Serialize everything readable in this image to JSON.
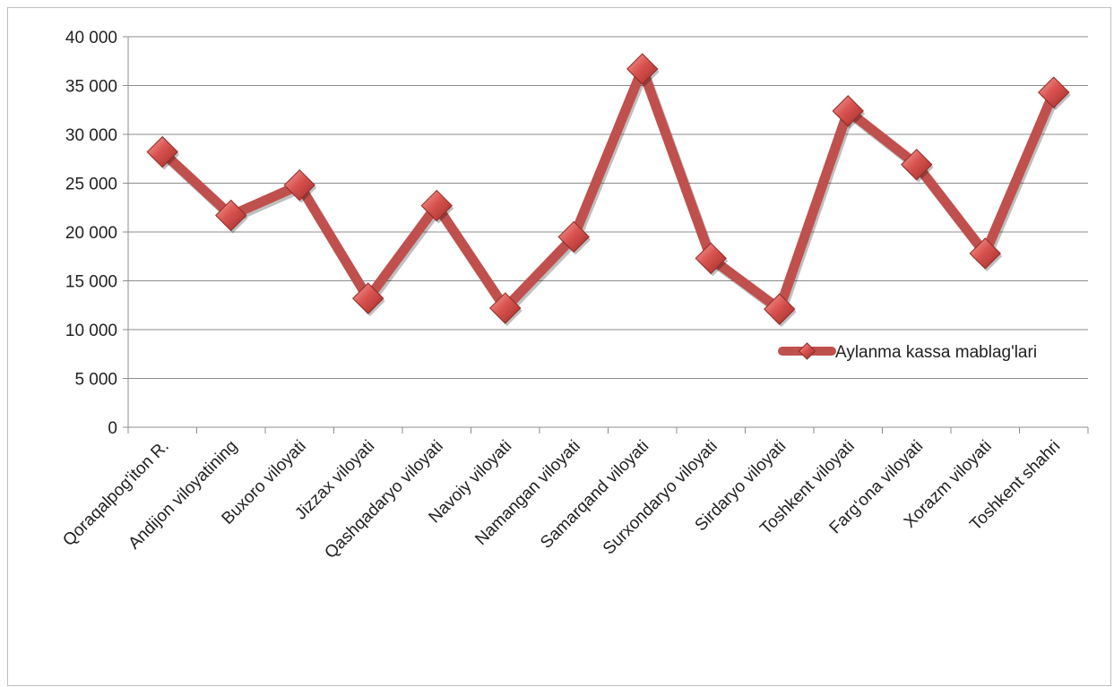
{
  "chart_data": {
    "type": "line",
    "categories": [
      "Qoraqalpog'iton R.",
      "Andijon viloyatining",
      "Buxoro viloyati",
      "Jizzax viloyati",
      "Qashqadaryo viloyati",
      "Navoiy viloyati",
      "Namangan viloyati",
      "Samarqand viloyati",
      "Surxondaryo viloyati",
      "Sirdaryo viloyati",
      "Toshkent viloyati",
      "Farg‘ona viloyati",
      "Xorazm viloyati",
      "Toshkent shahri"
    ],
    "series": [
      {
        "name": "Aylanma kassa mablag'lari",
        "values": [
          28200,
          21700,
          24800,
          13200,
          22700,
          12200,
          19500,
          36700,
          17300,
          12100,
          32400,
          26900,
          17800,
          34300
        ],
        "color": "#c0504d"
      }
    ],
    "ylim": [
      0,
      40000
    ],
    "yticks": [
      0,
      5000,
      10000,
      15000,
      20000,
      25000,
      30000,
      35000,
      40000
    ],
    "ytick_labels": [
      "0",
      "5 000",
      "10 000",
      "15 000",
      "20 000",
      "25 000",
      "30 000",
      "35 000",
      "40 000"
    ],
    "grid": true,
    "legend_position": "right",
    "title": "",
    "xlabel": "",
    "ylabel": ""
  }
}
